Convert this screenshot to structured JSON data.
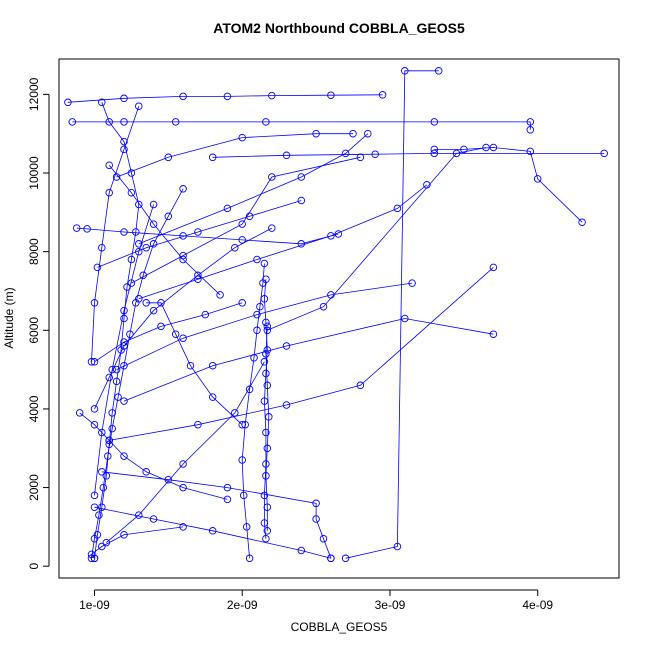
{
  "chart_data": {
    "type": "line",
    "title": "ATOM2 Northbound COBBLA_GEOS5",
    "xlabel": "COBBLA_GEOS5",
    "ylabel": "Altitude (m)",
    "xlim": [
      7.6e-10,
      4.55e-09
    ],
    "ylim": [
      -300,
      12900
    ],
    "x_ticks": [
      1e-09,
      2e-09,
      3e-09,
      4e-09
    ],
    "x_tick_labels": [
      "1e-09",
      "2e-09",
      "3e-09",
      "4e-09"
    ],
    "y_ticks": [
      0,
      2000,
      4000,
      6000,
      8000,
      10000,
      12000
    ],
    "y_tick_labels": [
      "0",
      "2000",
      "4000",
      "6000",
      "8000",
      "10000",
      "12000"
    ],
    "grid": false,
    "series_color": "#0000ff",
    "marker": "open-circle",
    "series": [
      {
        "x": [
          1e-09,
          1.02e-09,
          1.05e-09,
          1.08e-09,
          1.1e-09,
          1.12e-09,
          1.15e-09,
          1.18e-09,
          1.2e-09,
          1.22e-09,
          1.25e-09,
          1.28e-09,
          1.3e-09,
          1.25e-09,
          1.2e-09,
          1.1e-09,
          1.05e-09
        ],
        "y": [
          200,
          800,
          1500,
          2300,
          3100,
          3900,
          4700,
          5500,
          6300,
          7100,
          7800,
          8500,
          9200,
          10000,
          10800,
          11300,
          11800
        ]
      },
      {
        "x": [
          9.8e-10,
          1e-09,
          1.03e-09,
          1.06e-09,
          1.09e-09,
          1.12e-09,
          1.16e-09,
          1.2e-09,
          1.24e-09,
          1.28e-09,
          1.33e-09,
          1.4e-09,
          1.5e-09,
          1.6e-09
        ],
        "y": [
          200,
          700,
          1300,
          2000,
          2800,
          3500,
          4300,
          5100,
          5900,
          6700,
          7400,
          8200,
          8900,
          9600
        ]
      },
      {
        "x": [
          2.05e-09,
          2.03e-09,
          2.01e-09,
          2e-09,
          2.02e-09,
          2.05e-09,
          2.08e-09,
          2.1e-09,
          2.12e-09,
          2.14e-09,
          2.15e-09
        ],
        "y": [
          200,
          1000,
          1800,
          2700,
          3600,
          4500,
          5300,
          6000,
          6600,
          7200,
          7700
        ]
      },
      {
        "x": [
          2.16e-09,
          2.15e-09,
          2.15e-09,
          2.16e-09,
          2.16e-09,
          2.15e-09,
          2.16e-09,
          2.17e-09,
          2.16e-09,
          2.15e-09,
          2.16e-09
        ],
        "y": [
          700,
          1100,
          1800,
          2600,
          3400,
          4200,
          4900,
          5500,
          6200,
          6800,
          7300
        ]
      },
      {
        "x": [
          2.17e-09,
          2.17e-09,
          2.16e-09,
          2.17e-09,
          2.18e-09,
          2.17e-09,
          2.16e-09,
          2.17e-09
        ],
        "y": [
          900,
          1500,
          2300,
          3000,
          3800,
          4600,
          5400,
          6100
        ]
      },
      {
        "x": [
          2.17e-09,
          2.55e-09,
          3.45e-09,
          3.65e-09
        ],
        "y": [
          6000,
          6600,
          10500,
          10650
        ]
      },
      {
        "x": [
          2.7e-09,
          3.05e-09,
          3.1e-09,
          3.33e-09
        ],
        "y": [
          200,
          500,
          12600,
          12600
        ]
      },
      {
        "x": [
          1.8e-09,
          2.3e-09,
          2.9e-09,
          3.3e-09,
          4.45e-09
        ],
        "y": [
          10400,
          10450,
          10480,
          10500,
          10500
        ]
      },
      {
        "x": [
          3.3e-09,
          3.5e-09,
          3.7e-09,
          3.95e-09,
          4e-09,
          4.3e-09
        ],
        "y": [
          10600,
          10600,
          10650,
          10550,
          9850,
          8750
        ]
      },
      {
        "x": [
          8.2e-10,
          1.2e-09,
          1.6e-09,
          1.9e-09,
          2.2e-09,
          2.6e-09,
          2.95e-09
        ],
        "y": [
          11800,
          11900,
          11950,
          11950,
          11970,
          11980,
          11990
        ]
      },
      {
        "x": [
          8.5e-10,
          1.2e-09,
          1.55e-09,
          2.16e-09,
          3.3e-09,
          3.95e-09,
          3.95e-09
        ],
        "y": [
          11300,
          11300,
          11300,
          11300,
          11300,
          11300,
          11100
        ]
      },
      {
        "x": [
          8.8e-10,
          9.5e-10,
          1.2e-09,
          1.6e-09,
          2e-09,
          2.4e-09,
          2.65e-09
        ],
        "y": [
          8600,
          8580,
          8500,
          8400,
          8300,
          8200,
          8450
        ]
      },
      {
        "x": [
          1.3e-09,
          1.7e-09,
          2.1e-09,
          2.6e-09,
          3.05e-09,
          3.25e-09
        ],
        "y": [
          6800,
          7300,
          7800,
          8400,
          9100,
          9700
        ]
      },
      {
        "x": [
          1.15e-09,
          1.6e-09,
          2.1e-09,
          2.6e-09,
          3.15e-09
        ],
        "y": [
          5000,
          5800,
          6400,
          6900,
          7200
        ]
      },
      {
        "x": [
          1.1e-09,
          1.7e-09,
          2.3e-09,
          2.8e-09,
          3.7e-09
        ],
        "y": [
          3200,
          3600,
          4100,
          4600,
          7600
        ]
      },
      {
        "x": [
          1.2e-09,
          1.8e-09,
          2.3e-09,
          3.1e-09,
          3.7e-09
        ],
        "y": [
          4200,
          5100,
          5600,
          6300,
          5900
        ]
      },
      {
        "x": [
          1.05e-09,
          1.5e-09,
          1.9e-09,
          2.5e-09,
          2.5e-09,
          2.55e-09,
          2.6e-09
        ],
        "y": [
          2400,
          2200,
          2000,
          1600,
          1200,
          700,
          200
        ]
      },
      {
        "x": [
          1e-09,
          1.4e-09,
          1.8e-09,
          2.4e-09,
          2.6e-09
        ],
        "y": [
          1500,
          1200,
          900,
          400,
          200
        ]
      },
      {
        "x": [
          1.25e-09,
          1.6e-09,
          2e-09,
          2.2e-09,
          2.8e-09
        ],
        "y": [
          7200,
          7900,
          8700,
          9900,
          10400
        ]
      },
      {
        "x": [
          1.3e-09,
          1.9e-09,
          2.4e-09,
          2.7e-09,
          2.85e-09
        ],
        "y": [
          8200,
          9100,
          9900,
          10500,
          11000
        ]
      },
      {
        "x": [
          1.15e-09,
          1.5e-09,
          2e-09,
          2.5e-09,
          2.75e-09
        ],
        "y": [
          9900,
          10400,
          10900,
          11000,
          11000
        ]
      },
      {
        "x": [
          1.6e-09,
          1.2e-09,
          1.05e-09,
          9.8e-10,
          1e-09
        ],
        "y": [
          1000,
          800,
          500,
          300,
          200
        ]
      },
      {
        "x": [
          1.3e-09,
          1.2e-09,
          1.1e-09,
          1.05e-09,
          1e-09,
          9.8e-10
        ],
        "y": [
          11700,
          10600,
          9500,
          8100,
          6700,
          5200
        ]
      },
      {
        "x": [
          1.08e-09,
          1.3e-09,
          1.6e-09,
          1.95e-09,
          2.15e-09
        ],
        "y": [
          600,
          1300,
          2600,
          3900,
          5200
        ]
      },
      {
        "x": [
          1.4e-09,
          1.3e-09,
          1.2e-09,
          1.12e-09,
          1.05e-09,
          1e-09
        ],
        "y": [
          9200,
          8000,
          6500,
          5000,
          3400,
          1800
        ]
      },
      {
        "x": [
          1e-09,
          1.1e-09,
          1.2e-09,
          1.4e-09,
          1.7e-09,
          1.95e-09,
          2.2e-09
        ],
        "y": [
          4000,
          4800,
          5600,
          6500,
          7400,
          8100,
          8600
        ]
      },
      {
        "x": [
          1.35e-09,
          1.45e-09,
          1.55e-09,
          1.65e-09,
          1.8e-09,
          2e-09
        ],
        "y": [
          6700,
          6700,
          5900,
          5100,
          4300,
          3600
        ]
      },
      {
        "x": [
          1.02e-09,
          1.35e-09,
          1.7e-09,
          2.05e-09,
          2.4e-09
        ],
        "y": [
          7600,
          8100,
          8500,
          8900,
          9300
        ]
      },
      {
        "x": [
          9e-10,
          1e-09,
          1.1e-09,
          1.2e-09,
          1.35e-09,
          1.6e-09,
          1.9e-09
        ],
        "y": [
          3900,
          3600,
          3200,
          2800,
          2400,
          2000,
          1700
        ]
      },
      {
        "x": [
          1.1e-09,
          1.25e-09,
          1.4e-09,
          1.6e-09,
          1.85e-09
        ],
        "y": [
          10200,
          9500,
          8700,
          7800,
          6900
        ]
      },
      {
        "x": [
          1e-09,
          1.2e-09,
          1.45e-09,
          1.75e-09,
          2e-09
        ],
        "y": [
          5200,
          5700,
          6100,
          6400,
          6700
        ]
      }
    ]
  }
}
